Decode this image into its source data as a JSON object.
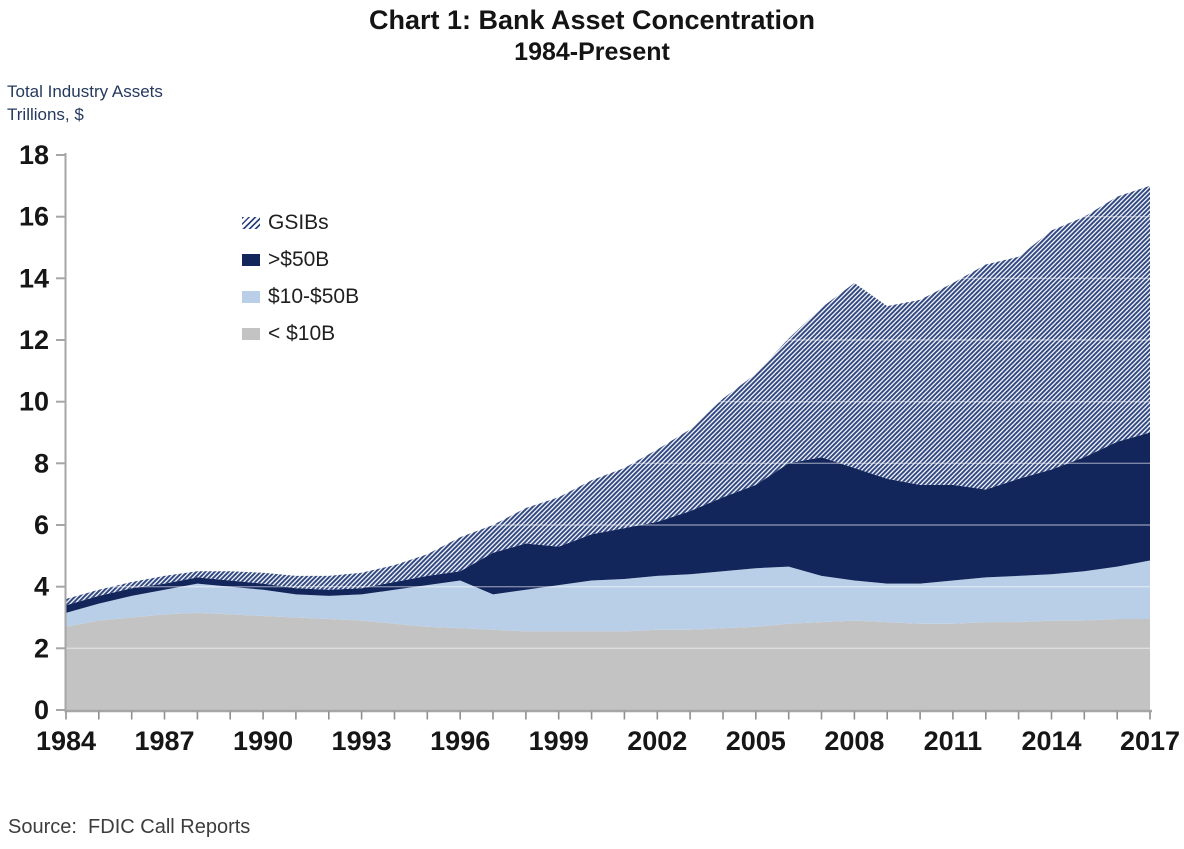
{
  "title": {
    "line1": "Chart 1: Bank Asset Concentration",
    "line2": "1984-Present"
  },
  "y_axis_caption": {
    "line1": "Total Industry Assets",
    "line2": "Trillions, $"
  },
  "source": "Source:  FDIC Call Reports",
  "legend": {
    "items": [
      {
        "label": "GSIBs",
        "pattern": "hatch",
        "color": "#2f4680"
      },
      {
        "label": ">$50B",
        "pattern": "solid",
        "color": "#13265c"
      },
      {
        "label": "$10-$50B",
        "pattern": "solid",
        "color": "#b9cfe8"
      },
      {
        "label": "< $10B",
        "pattern": "solid",
        "color": "#c3c3c3"
      }
    ]
  },
  "colors": {
    "axis": "#a6a6a6",
    "tick": "#8f8f8f",
    "tick_label": "#161616",
    "gridline_overlay": "rgba(255,255,255,0.45)",
    "gsib_hatch": "#2f4680",
    "over_50b": "#13265c",
    "b10_to_50b": "#b9cfe8",
    "under_10b": "#c3c3c3"
  },
  "chart_data": {
    "type": "area",
    "stacked": true,
    "title": "Chart 1: Bank Asset Concentration 1984-Present",
    "ylabel": "Total Industry Assets, Trillions $",
    "xlabel": "",
    "xlim": [
      1984,
      2017
    ],
    "ylim": [
      0,
      18
    ],
    "y_ticks": [
      0,
      2,
      4,
      6,
      8,
      10,
      12,
      14,
      16,
      18
    ],
    "x_tick_labels": [
      1984,
      1987,
      1990,
      1993,
      1996,
      1999,
      2002,
      2005,
      2008,
      2011,
      2014,
      2017
    ],
    "grid": "faint-white-horizontal",
    "legend_position": "upper-left-inside",
    "x": [
      1984,
      1985,
      1986,
      1987,
      1988,
      1989,
      1990,
      1991,
      1992,
      1993,
      1994,
      1995,
      1996,
      1997,
      1998,
      1999,
      2000,
      2001,
      2002,
      2003,
      2004,
      2005,
      2006,
      2007,
      2008,
      2009,
      2010,
      2011,
      2012,
      2013,
      2014,
      2015,
      2016,
      2017
    ],
    "series": [
      {
        "key": "lt-10b",
        "name": "< $10B",
        "color": "#c3c3c3",
        "pattern": "solid",
        "values": [
          2.7,
          2.9,
          3.0,
          3.1,
          3.15,
          3.1,
          3.05,
          3.0,
          2.95,
          2.9,
          2.8,
          2.7,
          2.65,
          2.6,
          2.55,
          2.55,
          2.55,
          2.55,
          2.6,
          2.6,
          2.65,
          2.7,
          2.8,
          2.85,
          2.9,
          2.85,
          2.8,
          2.8,
          2.85,
          2.85,
          2.9,
          2.9,
          2.95,
          2.95
        ]
      },
      {
        "key": "10-50b",
        "name": "$10-$50B",
        "color": "#b9cfe8",
        "pattern": "solid",
        "values": [
          0.45,
          0.55,
          0.7,
          0.8,
          0.95,
          0.9,
          0.85,
          0.75,
          0.75,
          0.85,
          1.1,
          1.35,
          1.55,
          1.15,
          1.35,
          1.5,
          1.65,
          1.7,
          1.75,
          1.8,
          1.85,
          1.9,
          1.85,
          1.5,
          1.3,
          1.25,
          1.3,
          1.4,
          1.45,
          1.5,
          1.5,
          1.6,
          1.7,
          1.9
        ]
      },
      {
        "key": "gt-50b",
        "name": ">$50B",
        "color": "#13265c",
        "pattern": "solid",
        "values": [
          0.25,
          0.25,
          0.25,
          0.2,
          0.2,
          0.2,
          0.2,
          0.2,
          0.2,
          0.2,
          0.25,
          0.3,
          0.3,
          1.35,
          1.5,
          1.25,
          1.5,
          1.65,
          1.75,
          2.05,
          2.4,
          2.7,
          3.35,
          3.85,
          3.65,
          3.4,
          3.2,
          3.1,
          2.85,
          3.15,
          3.4,
          3.7,
          4.05,
          4.15
        ]
      },
      {
        "key": "gsibs",
        "name": "GSIBs",
        "color": "#2f4680",
        "pattern": "hatch",
        "values": [
          0.2,
          0.2,
          0.2,
          0.25,
          0.2,
          0.3,
          0.35,
          0.4,
          0.45,
          0.5,
          0.55,
          0.7,
          1.1,
          0.9,
          1.15,
          1.6,
          1.75,
          1.95,
          2.35,
          2.65,
          3.2,
          3.6,
          4.05,
          4.85,
          6.0,
          5.6,
          6.0,
          6.55,
          7.3,
          7.2,
          7.75,
          7.8,
          7.95,
          8.0
        ]
      }
    ]
  }
}
